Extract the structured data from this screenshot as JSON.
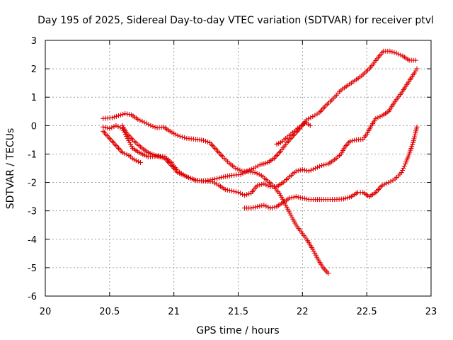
{
  "chart_data": {
    "type": "scatter",
    "title": "Day 195 of 2025, Sidereal Day-to-day VTEC variation (SDTVAR) for receiver ptvl",
    "xlabel": "GPS time / hours",
    "ylabel": "SDTVAR / TECUs",
    "xlim": [
      20,
      23
    ],
    "ylim": [
      -6,
      3
    ],
    "xticks": [
      20,
      20.5,
      21,
      21.5,
      22,
      22.5,
      23
    ],
    "yticks": [
      -6,
      -5,
      -4,
      -3,
      -2,
      -1,
      0,
      1,
      2,
      3
    ],
    "grid": true,
    "marker": "plus",
    "color": "#e00000",
    "series": [
      {
        "points": [
          [
            20.45,
            0.25
          ],
          [
            20.52,
            0.28
          ],
          [
            20.57,
            0.35
          ],
          [
            20.62,
            0.42
          ],
          [
            20.67,
            0.38
          ],
          [
            20.72,
            0.22
          ],
          [
            20.77,
            0.12
          ],
          [
            20.82,
            0.0
          ],
          [
            20.87,
            -0.08
          ],
          [
            20.92,
            -0.05
          ],
          [
            20.97,
            -0.2
          ],
          [
            21.03,
            -0.35
          ],
          [
            21.1,
            -0.45
          ],
          [
            21.17,
            -0.48
          ],
          [
            21.23,
            -0.52
          ],
          [
            21.28,
            -0.6
          ],
          [
            21.33,
            -0.85
          ],
          [
            21.38,
            -1.1
          ],
          [
            21.43,
            -1.32
          ],
          [
            21.48,
            -1.5
          ],
          [
            21.53,
            -1.6
          ],
          [
            21.58,
            -1.62
          ],
          [
            21.63,
            -1.65
          ],
          [
            21.68,
            -1.75
          ],
          [
            21.73,
            -1.95
          ],
          [
            21.78,
            -2.15
          ],
          [
            21.83,
            -2.45
          ],
          [
            21.87,
            -2.8
          ],
          [
            21.91,
            -3.15
          ],
          [
            21.95,
            -3.5
          ],
          [
            22.0,
            -3.8
          ],
          [
            22.04,
            -4.05
          ],
          [
            22.08,
            -4.35
          ],
          [
            22.12,
            -4.7
          ],
          [
            22.16,
            -5.0
          ],
          [
            22.2,
            -5.2
          ]
        ]
      },
      {
        "points": [
          [
            20.45,
            -0.05
          ],
          [
            20.5,
            -0.1
          ],
          [
            20.55,
            0.0
          ],
          [
            20.6,
            -0.1
          ],
          [
            20.64,
            -0.45
          ],
          [
            20.68,
            -0.8
          ],
          [
            20.73,
            -0.95
          ],
          [
            20.8,
            -1.1
          ],
          [
            20.87,
            -1.08
          ],
          [
            20.93,
            -1.15
          ],
          [
            20.98,
            -1.4
          ],
          [
            21.03,
            -1.65
          ],
          [
            21.1,
            -1.8
          ],
          [
            21.17,
            -1.92
          ],
          [
            21.23,
            -1.95
          ],
          [
            21.3,
            -1.9
          ],
          [
            21.37,
            -1.82
          ],
          [
            21.45,
            -1.75
          ],
          [
            21.52,
            -1.72
          ],
          [
            21.57,
            -1.6
          ],
          [
            21.62,
            -1.5
          ],
          [
            21.67,
            -1.38
          ],
          [
            21.73,
            -1.3
          ],
          [
            21.78,
            -1.15
          ],
          [
            21.83,
            -0.9
          ],
          [
            21.88,
            -0.6
          ],
          [
            21.93,
            -0.35
          ],
          [
            21.98,
            -0.1
          ],
          [
            22.03,
            0.2
          ],
          [
            22.08,
            0.32
          ],
          [
            22.13,
            0.45
          ],
          [
            22.18,
            0.7
          ],
          [
            22.24,
            0.95
          ],
          [
            22.3,
            1.25
          ],
          [
            22.38,
            1.5
          ],
          [
            22.46,
            1.75
          ],
          [
            22.53,
            2.05
          ],
          [
            22.58,
            2.35
          ],
          [
            22.63,
            2.62
          ],
          [
            22.68,
            2.62
          ],
          [
            22.73,
            2.55
          ],
          [
            22.78,
            2.45
          ],
          [
            22.83,
            2.3
          ],
          [
            22.88,
            2.3
          ]
        ]
      },
      {
        "points": [
          [
            20.45,
            -0.2
          ],
          [
            20.5,
            -0.45
          ],
          [
            20.55,
            -0.7
          ],
          [
            20.6,
            -0.95
          ],
          [
            20.65,
            -1.05
          ],
          [
            20.69,
            -1.2
          ],
          [
            20.74,
            -1.3
          ]
        ]
      },
      {
        "points": [
          [
            21.55,
            -2.9
          ],
          [
            21.6,
            -2.9
          ],
          [
            21.65,
            -2.85
          ],
          [
            21.7,
            -2.8
          ],
          [
            21.75,
            -2.9
          ],
          [
            21.8,
            -2.85
          ],
          [
            21.85,
            -2.7
          ],
          [
            21.9,
            -2.55
          ],
          [
            21.95,
            -2.5
          ],
          [
            22.0,
            -2.55
          ],
          [
            22.05,
            -2.6
          ],
          [
            22.1,
            -2.6
          ],
          [
            22.18,
            -2.6
          ],
          [
            22.25,
            -2.6
          ],
          [
            22.32,
            -2.58
          ],
          [
            22.38,
            -2.5
          ],
          [
            22.43,
            -2.35
          ],
          [
            22.47,
            -2.35
          ],
          [
            22.52,
            -2.5
          ],
          [
            22.57,
            -2.35
          ],
          [
            22.62,
            -2.1
          ],
          [
            22.67,
            -2.0
          ],
          [
            22.72,
            -1.88
          ],
          [
            22.77,
            -1.65
          ],
          [
            22.8,
            -1.35
          ],
          [
            22.83,
            -1.0
          ],
          [
            22.86,
            -0.6
          ],
          [
            22.89,
            -0.05
          ]
        ]
      },
      {
        "points": [
          [
            20.6,
            0.0
          ],
          [
            20.63,
            -0.25
          ],
          [
            20.68,
            -0.5
          ],
          [
            20.74,
            -0.75
          ],
          [
            20.8,
            -0.95
          ],
          [
            20.86,
            -1.05
          ],
          [
            20.93,
            -1.1
          ],
          [
            20.98,
            -1.3
          ],
          [
            21.03,
            -1.6
          ],
          [
            21.1,
            -1.8
          ],
          [
            21.17,
            -1.93
          ],
          [
            21.23,
            -1.95
          ],
          [
            21.3,
            -1.98
          ],
          [
            21.35,
            -2.1
          ],
          [
            21.4,
            -2.25
          ],
          [
            21.45,
            -2.3
          ],
          [
            21.5,
            -2.35
          ],
          [
            21.55,
            -2.45
          ],
          [
            21.6,
            -2.38
          ],
          [
            21.65,
            -2.1
          ],
          [
            21.7,
            -2.05
          ],
          [
            21.75,
            -2.15
          ],
          [
            21.8,
            -2.15
          ],
          [
            21.85,
            -2.0
          ],
          [
            21.9,
            -1.8
          ],
          [
            21.95,
            -1.6
          ],
          [
            22.0,
            -1.55
          ],
          [
            22.05,
            -1.6
          ],
          [
            22.1,
            -1.5
          ],
          [
            22.15,
            -1.4
          ],
          [
            22.2,
            -1.35
          ],
          [
            22.25,
            -1.2
          ],
          [
            22.3,
            -1.0
          ],
          [
            22.33,
            -0.75
          ],
          [
            22.37,
            -0.55
          ],
          [
            22.42,
            -0.5
          ],
          [
            22.47,
            -0.48
          ],
          [
            22.5,
            -0.3
          ],
          [
            22.53,
            -0.05
          ],
          [
            22.57,
            0.25
          ],
          [
            22.62,
            0.35
          ],
          [
            22.67,
            0.5
          ],
          [
            22.72,
            0.85
          ],
          [
            22.77,
            1.15
          ],
          [
            22.82,
            1.5
          ],
          [
            22.87,
            1.85
          ],
          [
            22.89,
            2.0
          ]
        ]
      },
      {
        "points": [
          [
            21.8,
            -0.65
          ],
          [
            21.83,
            -0.6
          ],
          [
            21.87,
            -0.45
          ],
          [
            21.91,
            -0.3
          ],
          [
            21.95,
            -0.15
          ],
          [
            21.99,
            0.0
          ],
          [
            22.03,
            0.1
          ],
          [
            22.06,
            0.0
          ]
        ]
      }
    ]
  }
}
